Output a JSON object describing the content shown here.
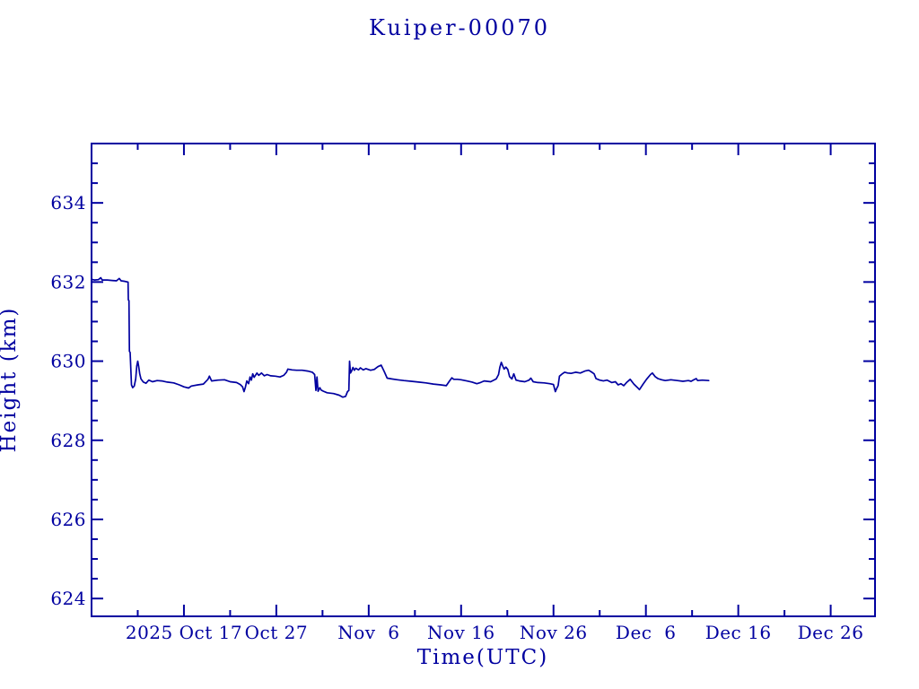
{
  "window": {
    "title": "Kuiper-00070"
  },
  "colors": {
    "ink": "#0000A0",
    "background": "#ffffff"
  },
  "chart_data": {
    "type": "line",
    "title": "Kuiper-00070",
    "xlabel": "Time(UTC)",
    "ylabel": "Height (km)",
    "grid": false,
    "legend": "none",
    "x_axis": {
      "unit": "days since 2025 Oct 7 00:00 UTC",
      "range_days": [
        0,
        84.8
      ],
      "minor_tick_days": 5,
      "major_tick_days": 10,
      "tick_labels": [
        {
          "day": 10,
          "label": "2025 Oct 17"
        },
        {
          "day": 20,
          "label": "Oct 27"
        },
        {
          "day": 30,
          "label": "Nov  6"
        },
        {
          "day": 40,
          "label": "Nov 16"
        },
        {
          "day": 50,
          "label": "Nov 26"
        },
        {
          "day": 60,
          "label": "Dec  6"
        },
        {
          "day": 70,
          "label": "Dec 16"
        },
        {
          "day": 80,
          "label": "Dec 26"
        }
      ]
    },
    "y_axis": {
      "unit": "km",
      "range": [
        623.55,
        635.5
      ],
      "minor_tick_km": 0.5,
      "major_tick_km": 2,
      "tick_labels": [
        "624",
        "626",
        "628",
        "630",
        "632",
        "634"
      ]
    },
    "series": [
      {
        "name": "Kuiper-00070 height",
        "color": "#0000A0",
        "points": [
          [
            0,
            632.07
          ],
          [
            0.3,
            632.05
          ],
          [
            0.75,
            632.06
          ],
          [
            1.0,
            632.11
          ],
          [
            1.15,
            632.05
          ],
          [
            1.7,
            632.05
          ],
          [
            2.2,
            632.04
          ],
          [
            2.7,
            632.03
          ],
          [
            3.0,
            632.09
          ],
          [
            3.2,
            632.03
          ],
          [
            3.55,
            632.02
          ],
          [
            3.95,
            632.0
          ],
          [
            3.98,
            631.55
          ],
          [
            4.05,
            631.53
          ],
          [
            4.1,
            630.25
          ],
          [
            4.18,
            630.22
          ],
          [
            4.32,
            629.4
          ],
          [
            4.45,
            629.33
          ],
          [
            4.62,
            629.37
          ],
          [
            4.78,
            629.55
          ],
          [
            4.9,
            629.88
          ],
          [
            5.0,
            630.0
          ],
          [
            5.1,
            629.87
          ],
          [
            5.22,
            629.68
          ],
          [
            5.35,
            629.55
          ],
          [
            5.6,
            629.47
          ],
          [
            5.9,
            629.44
          ],
          [
            6.2,
            629.52
          ],
          [
            6.6,
            629.48
          ],
          [
            7.1,
            629.51
          ],
          [
            7.6,
            629.5
          ],
          [
            8.2,
            629.47
          ],
          [
            8.9,
            629.45
          ],
          [
            9.5,
            629.4
          ],
          [
            10.0,
            629.35
          ],
          [
            10.5,
            629.32
          ],
          [
            10.8,
            629.37
          ],
          [
            11.5,
            629.4
          ],
          [
            12.1,
            629.42
          ],
          [
            12.6,
            629.54
          ],
          [
            12.75,
            629.62
          ],
          [
            13.0,
            629.5
          ],
          [
            13.7,
            629.52
          ],
          [
            14.4,
            629.53
          ],
          [
            15.0,
            629.48
          ],
          [
            15.7,
            629.46
          ],
          [
            16.1,
            629.41
          ],
          [
            16.35,
            629.35
          ],
          [
            16.5,
            629.23
          ],
          [
            16.65,
            629.34
          ],
          [
            16.8,
            629.5
          ],
          [
            17.0,
            629.43
          ],
          [
            17.15,
            629.6
          ],
          [
            17.3,
            629.52
          ],
          [
            17.45,
            629.68
          ],
          [
            17.6,
            629.59
          ],
          [
            17.9,
            629.7
          ],
          [
            18.1,
            629.64
          ],
          [
            18.4,
            629.7
          ],
          [
            18.7,
            629.63
          ],
          [
            19.0,
            629.66
          ],
          [
            19.4,
            629.63
          ],
          [
            19.9,
            629.62
          ],
          [
            20.4,
            629.6
          ],
          [
            20.8,
            629.64
          ],
          [
            21.1,
            629.72
          ],
          [
            21.25,
            629.8
          ],
          [
            21.7,
            629.78
          ],
          [
            22.2,
            629.77
          ],
          [
            22.8,
            629.77
          ],
          [
            23.4,
            629.75
          ],
          [
            23.9,
            629.72
          ],
          [
            24.15,
            629.66
          ],
          [
            24.28,
            629.26
          ],
          [
            24.4,
            629.6
          ],
          [
            24.52,
            629.24
          ],
          [
            24.7,
            629.33
          ],
          [
            24.85,
            629.27
          ],
          [
            25.1,
            629.24
          ],
          [
            25.5,
            629.2
          ],
          [
            26.2,
            629.18
          ],
          [
            26.8,
            629.14
          ],
          [
            27.2,
            629.09
          ],
          [
            27.5,
            629.11
          ],
          [
            27.7,
            629.23
          ],
          [
            27.85,
            629.26
          ],
          [
            27.93,
            630.0
          ],
          [
            28.02,
            629.7
          ],
          [
            28.15,
            629.75
          ],
          [
            28.3,
            629.84
          ],
          [
            28.45,
            629.77
          ],
          [
            28.6,
            629.82
          ],
          [
            28.9,
            629.78
          ],
          [
            29.1,
            629.83
          ],
          [
            29.4,
            629.78
          ],
          [
            29.7,
            629.81
          ],
          [
            30.2,
            629.77
          ],
          [
            30.6,
            629.79
          ],
          [
            31.0,
            629.86
          ],
          [
            31.35,
            629.9
          ],
          [
            31.7,
            629.73
          ],
          [
            32.0,
            629.57
          ],
          [
            32.5,
            629.55
          ],
          [
            33.1,
            629.53
          ],
          [
            33.8,
            629.51
          ],
          [
            34.6,
            629.49
          ],
          [
            35.4,
            629.47
          ],
          [
            36.2,
            629.45
          ],
          [
            37.0,
            629.42
          ],
          [
            37.8,
            629.4
          ],
          [
            38.4,
            629.38
          ],
          [
            38.75,
            629.5
          ],
          [
            39.0,
            629.58
          ],
          [
            39.2,
            629.54
          ],
          [
            39.6,
            629.54
          ],
          [
            40.0,
            629.53
          ],
          [
            40.6,
            629.5
          ],
          [
            41.2,
            629.47
          ],
          [
            41.7,
            629.43
          ],
          [
            42.1,
            629.46
          ],
          [
            42.5,
            629.5
          ],
          [
            43.2,
            629.48
          ],
          [
            43.8,
            629.55
          ],
          [
            44.05,
            629.66
          ],
          [
            44.2,
            629.85
          ],
          [
            44.35,
            629.97
          ],
          [
            44.5,
            629.88
          ],
          [
            44.65,
            629.8
          ],
          [
            44.85,
            629.85
          ],
          [
            45.05,
            629.79
          ],
          [
            45.25,
            629.61
          ],
          [
            45.5,
            629.55
          ],
          [
            45.7,
            629.68
          ],
          [
            45.95,
            629.52
          ],
          [
            46.3,
            629.5
          ],
          [
            46.9,
            629.48
          ],
          [
            47.35,
            629.52
          ],
          [
            47.55,
            629.57
          ],
          [
            47.8,
            629.48
          ],
          [
            48.3,
            629.46
          ],
          [
            49.0,
            629.45
          ],
          [
            49.6,
            629.43
          ],
          [
            50.0,
            629.41
          ],
          [
            50.2,
            629.23
          ],
          [
            50.35,
            629.31
          ],
          [
            50.5,
            629.38
          ],
          [
            50.65,
            629.62
          ],
          [
            50.9,
            629.67
          ],
          [
            51.2,
            629.72
          ],
          [
            51.55,
            629.7
          ],
          [
            51.9,
            629.69
          ],
          [
            52.4,
            629.72
          ],
          [
            52.9,
            629.7
          ],
          [
            53.4,
            629.75
          ],
          [
            53.8,
            629.77
          ],
          [
            54.1,
            629.73
          ],
          [
            54.4,
            629.68
          ],
          [
            54.6,
            629.56
          ],
          [
            55.0,
            629.52
          ],
          [
            55.4,
            629.5
          ],
          [
            55.8,
            629.52
          ],
          [
            56.3,
            629.46
          ],
          [
            56.7,
            629.48
          ],
          [
            57.0,
            629.4
          ],
          [
            57.3,
            629.43
          ],
          [
            57.6,
            629.38
          ],
          [
            57.9,
            629.46
          ],
          [
            58.3,
            629.54
          ],
          [
            58.7,
            629.42
          ],
          [
            59.1,
            629.33
          ],
          [
            59.3,
            629.28
          ],
          [
            59.7,
            629.42
          ],
          [
            60.1,
            629.55
          ],
          [
            60.5,
            629.66
          ],
          [
            60.7,
            629.7
          ],
          [
            61.0,
            629.61
          ],
          [
            61.3,
            629.56
          ],
          [
            61.7,
            629.53
          ],
          [
            62.1,
            629.51
          ],
          [
            62.7,
            629.53
          ],
          [
            63.4,
            629.51
          ],
          [
            64.0,
            629.49
          ],
          [
            64.6,
            629.51
          ],
          [
            64.9,
            629.49
          ],
          [
            65.2,
            629.53
          ],
          [
            65.45,
            629.56
          ],
          [
            65.6,
            629.51
          ],
          [
            66.1,
            629.52
          ],
          [
            66.8,
            629.51
          ]
        ]
      }
    ]
  }
}
